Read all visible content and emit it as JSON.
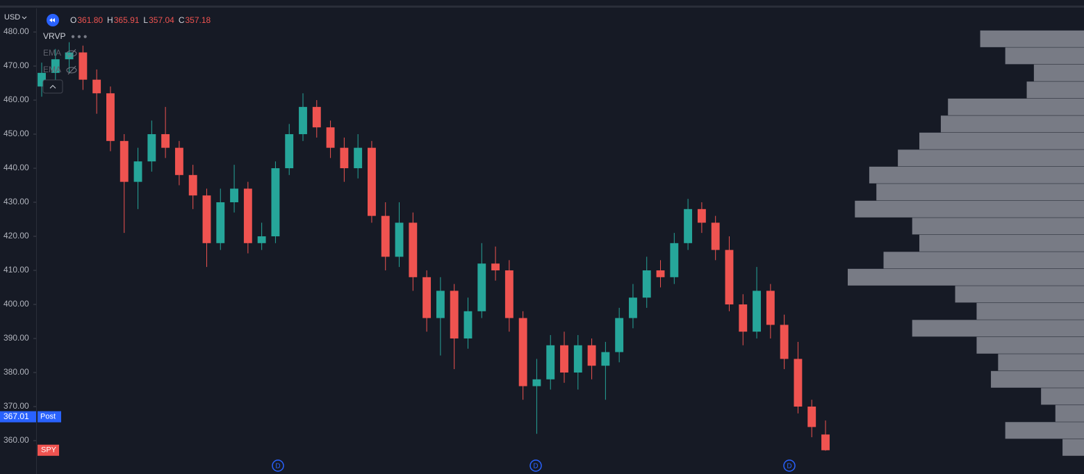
{
  "header": {
    "currency": "USD",
    "ohlc": [
      {
        "label": "O",
        "value": "361.80"
      },
      {
        "label": "H",
        "value": "365.91"
      },
      {
        "label": "L",
        "value": "357.04"
      },
      {
        "label": "C",
        "value": "357.18"
      }
    ]
  },
  "indicators": [
    "VRVP",
    "EMA",
    "EMA"
  ],
  "price_labels": {
    "session": "Post",
    "symbol": "SPY"
  },
  "events": [
    "D",
    "D",
    "D"
  ],
  "chart_data": {
    "type": "candlestick",
    "open": [
      464,
      468,
      472,
      474,
      466,
      462,
      448,
      436,
      442,
      450,
      446,
      438,
      432,
      418,
      430,
      434,
      418,
      420,
      440,
      450,
      458,
      452,
      446,
      440,
      446,
      426,
      414,
      424,
      408,
      396,
      404,
      390,
      398,
      412,
      410,
      396,
      376,
      378,
      388,
      380,
      388,
      382,
      386,
      396,
      402,
      410,
      408,
      418,
      428,
      424,
      416,
      400,
      392,
      404,
      394,
      384,
      370,
      361.8
    ],
    "high": [
      471,
      475,
      477,
      476,
      469,
      464,
      450,
      446,
      454,
      458,
      448,
      441,
      434,
      434,
      441,
      436,
      424,
      442,
      453,
      462,
      460,
      454,
      449,
      450,
      448,
      430,
      430,
      427,
      410,
      408,
      406,
      402,
      418,
      417,
      413,
      398,
      384,
      391,
      392,
      391,
      390,
      389,
      399,
      406,
      414,
      413,
      421,
      431,
      430,
      426,
      420,
      403,
      411,
      406,
      397,
      389,
      372,
      365.91
    ],
    "low": [
      461,
      465,
      468,
      463,
      456,
      445,
      421,
      428,
      439,
      443,
      435,
      428,
      411,
      416,
      427,
      415,
      416,
      418,
      438,
      448,
      449,
      443,
      436,
      437,
      424,
      410,
      411,
      404,
      392,
      385,
      381,
      387,
      396,
      407,
      392,
      372,
      362,
      375,
      377,
      375,
      378,
      372,
      383,
      393,
      399,
      405,
      406,
      416,
      421,
      413,
      398,
      388,
      390,
      390,
      381,
      368,
      361,
      357.04
    ],
    "close": [
      468,
      472,
      474,
      466,
      462,
      448,
      436,
      442,
      450,
      446,
      438,
      432,
      418,
      430,
      434,
      418,
      420,
      440,
      450,
      458,
      452,
      446,
      440,
      446,
      426,
      414,
      424,
      408,
      396,
      404,
      390,
      398,
      412,
      410,
      396,
      376,
      378,
      388,
      380,
      388,
      382,
      386,
      396,
      402,
      410,
      408,
      418,
      428,
      424,
      416,
      400,
      392,
      404,
      394,
      384,
      370,
      364,
      357.18
    ],
    "up_color": "#26a69a",
    "down_color": "#ef5350",
    "ylim": [
      350.2,
      489.4
    ],
    "yticks": [
      {
        "value": 480,
        "label": "480.00"
      },
      {
        "value": 470,
        "label": "470.00"
      },
      {
        "value": 460,
        "label": "460.00"
      },
      {
        "value": 450,
        "label": "450.00"
      },
      {
        "value": 440,
        "label": "440.00"
      },
      {
        "value": 430,
        "label": "430.00"
      },
      {
        "value": 420,
        "label": "420.00"
      },
      {
        "value": 410,
        "label": "410.00"
      },
      {
        "value": 400,
        "label": "400.00"
      },
      {
        "value": 390,
        "label": "390.00"
      },
      {
        "value": 380,
        "label": "380.00"
      },
      {
        "value": 370,
        "label": "370.00"
      },
      {
        "value": 360,
        "label": "360.00"
      }
    ],
    "last_price": {
      "value": 367.01,
      "label": "367.01"
    },
    "volume_profile": {
      "color": "#8a8d96",
      "prices": [
        478,
        473,
        468,
        463,
        458,
        453,
        448,
        443,
        438,
        433,
        428,
        423,
        418,
        413,
        408,
        403,
        398,
        393,
        388,
        383,
        378,
        373,
        368,
        363,
        358
      ],
      "volumes": [
        145,
        110,
        70,
        80,
        190,
        200,
        230,
        260,
        300,
        290,
        320,
        240,
        230,
        280,
        330,
        180,
        150,
        240,
        150,
        120,
        130,
        60,
        40,
        110,
        30
      ]
    }
  }
}
